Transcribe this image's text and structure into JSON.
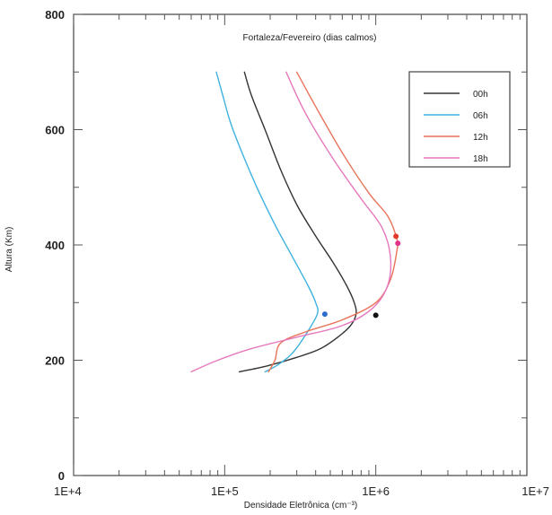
{
  "chart_data": {
    "type": "line",
    "title": "Fortaleza/Fevereiro (dias calmos)",
    "xlabel": "Densidade Eletrônica (cm⁻³)",
    "ylabel": "Altura (Km)",
    "xscale": "log",
    "xlim": [
      10000,
      10000000
    ],
    "ylim": [
      0,
      800
    ],
    "x_tick_values": [
      10000,
      100000,
      1000000,
      10000000
    ],
    "x_tick_labels": [
      "1E+4",
      "1E+5",
      "1E+6",
      "1E+7"
    ],
    "y_ticks": [
      0,
      200,
      400,
      600,
      800
    ],
    "grid": false,
    "legend_position": "top-right",
    "series": [
      {
        "name": "00h",
        "color": "#333333",
        "points": [
          [
            125000,
            180
          ],
          [
            190000,
            190
          ],
          [
            300000,
            205
          ],
          [
            430000,
            220
          ],
          [
            560000,
            240
          ],
          [
            680000,
            260
          ],
          [
            740000,
            280
          ],
          [
            720000,
            300
          ],
          [
            640000,
            330
          ],
          [
            520000,
            370
          ],
          [
            390000,
            420
          ],
          [
            300000,
            470
          ],
          [
            235000,
            530
          ],
          [
            185000,
            600
          ],
          [
            150000,
            660
          ],
          [
            135000,
            700
          ]
        ]
      },
      {
        "name": "06h",
        "color": "#3fb2df",
        "points": [
          [
            185000,
            180
          ],
          [
            225000,
            192
          ],
          [
            280000,
            212
          ],
          [
            345000,
            245
          ],
          [
            410000,
            280
          ],
          [
            400000,
            300
          ],
          [
            355000,
            330
          ],
          [
            280000,
            380
          ],
          [
            220000,
            430
          ],
          [
            170000,
            490
          ],
          [
            135000,
            550
          ],
          [
            110000,
            610
          ],
          [
            97000,
            660
          ],
          [
            88000,
            700
          ]
        ]
      },
      {
        "name": "12h",
        "color": "#e8735a",
        "points": [
          [
            195000,
            180
          ],
          [
            215000,
            200
          ],
          [
            235000,
            230
          ],
          [
            350000,
            250
          ],
          [
            600000,
            270
          ],
          [
            1000000,
            300
          ],
          [
            1250000,
            340
          ],
          [
            1380000,
            390
          ],
          [
            1380000,
            410
          ],
          [
            1200000,
            450
          ],
          [
            900000,
            490
          ],
          [
            600000,
            560
          ],
          [
            400000,
            640
          ],
          [
            300000,
            700
          ]
        ]
      },
      {
        "name": "18h",
        "color": "#e678bd",
        "points": [
          [
            60000,
            180
          ],
          [
            90000,
            200
          ],
          [
            150000,
            220
          ],
          [
            300000,
            240
          ],
          [
            600000,
            260
          ],
          [
            950000,
            290
          ],
          [
            1200000,
            330
          ],
          [
            1250000,
            380
          ],
          [
            1100000,
            430
          ],
          [
            800000,
            480
          ],
          [
            520000,
            550
          ],
          [
            340000,
            630
          ],
          [
            255000,
            700
          ]
        ]
      }
    ],
    "markers": [
      {
        "x": 460000,
        "y": 280,
        "color": "#2e6dcc"
      },
      {
        "x": 1000000,
        "y": 278,
        "color": "#111111"
      },
      {
        "x": 1360000,
        "y": 415,
        "color": "#e23a2a"
      },
      {
        "x": 1400000,
        "y": 403,
        "color": "#e0338a"
      }
    ]
  }
}
